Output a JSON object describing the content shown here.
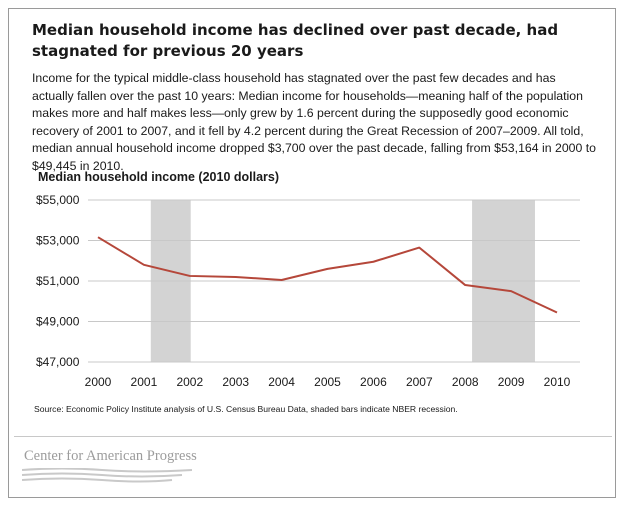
{
  "header": {
    "title": "Median household income has declined over past decade, had stagnated for previous 20 years",
    "description": "Income for the typical middle-class household has stagnated over the past few decades and has actually fallen over the past 10 years: Median income for households—meaning half of the population makes more and half makes less—only grew by 1.6 percent during the supposedly good economic recovery of 2001 to 2007, and it fell by 4.2 percent during the Great Recession of 2007–2009. All told, median annual household income dropped $3,700 over the past decade, falling from $53,164 in 2000 to $49,445 in 2010."
  },
  "chart_data": {
    "type": "line",
    "title": "Median household income (2010 dollars)",
    "xlabel": "",
    "ylabel": "",
    "categories": [
      "2000",
      "2001",
      "2002",
      "2003",
      "2004",
      "2005",
      "2006",
      "2007",
      "2008",
      "2009",
      "2010"
    ],
    "series": [
      {
        "values": [
          53164,
          51800,
          51250,
          51200,
          51050,
          51600,
          51950,
          52650,
          50800,
          50500,
          49445
        ]
      }
    ],
    "ylim": [
      47000,
      55000
    ],
    "yticks": [
      47000,
      49000,
      51000,
      53000,
      55000
    ],
    "ytick_labels": [
      "$47,000",
      "$49,000",
      "$51,000",
      "$53,000",
      "$55,000"
    ],
    "recession_shading": [
      [
        "2001",
        "2002"
      ],
      [
        "2008",
        "2009.5"
      ]
    ],
    "grid": true,
    "colors": {
      "line": "#b5473a",
      "recession": "#d3d3d3",
      "grid": "#c8c8c8"
    }
  },
  "source": "Source: Economic Policy Institute analysis of U.S. Census Bureau Data, shaded bars indicate NBER recession.",
  "logo": {
    "text": "Center for American Progress"
  }
}
